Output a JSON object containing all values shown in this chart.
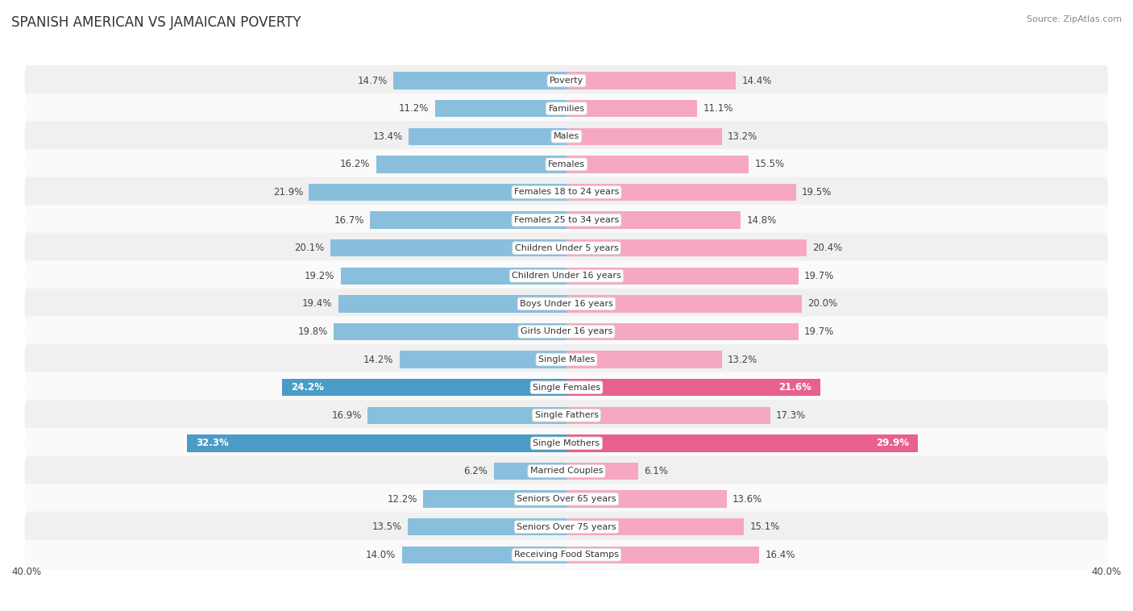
{
  "title": "SPANISH AMERICAN VS JAMAICAN POVERTY",
  "source": "Source: ZipAtlas.com",
  "categories": [
    "Poverty",
    "Families",
    "Males",
    "Females",
    "Females 18 to 24 years",
    "Females 25 to 34 years",
    "Children Under 5 years",
    "Children Under 16 years",
    "Boys Under 16 years",
    "Girls Under 16 years",
    "Single Males",
    "Single Females",
    "Single Fathers",
    "Single Mothers",
    "Married Couples",
    "Seniors Over 65 years",
    "Seniors Over 75 years",
    "Receiving Food Stamps"
  ],
  "spanish_american": [
    14.7,
    11.2,
    13.4,
    16.2,
    21.9,
    16.7,
    20.1,
    19.2,
    19.4,
    19.8,
    14.2,
    24.2,
    16.9,
    32.3,
    6.2,
    12.2,
    13.5,
    14.0
  ],
  "jamaican": [
    14.4,
    11.1,
    13.2,
    15.5,
    19.5,
    14.8,
    20.4,
    19.7,
    20.0,
    19.7,
    13.2,
    21.6,
    17.3,
    29.9,
    6.1,
    13.6,
    15.1,
    16.4
  ],
  "spanish_color": "#89bfdd",
  "jamaican_color": "#f5a8bf",
  "spanish_highlight_color": "#4a9cc7",
  "jamaican_highlight_color": "#e86090",
  "row_bg_even": "#f0f0f0",
  "row_bg_odd": "#fafafa",
  "bar_height": 0.62,
  "max_value": 40.0,
  "label_fontsize": 8.5,
  "title_fontsize": 12,
  "category_fontsize": 8,
  "highlight_rows": [
    11,
    13
  ],
  "background_color": "#ffffff"
}
